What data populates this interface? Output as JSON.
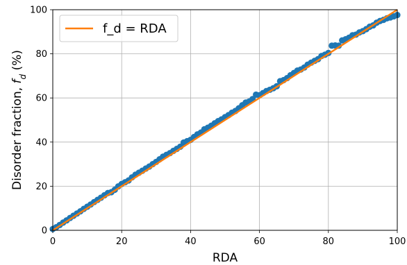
{
  "chart_data": {
    "type": "scatter",
    "xlabel": "RDA",
    "ylabel": "Disorder fraction, ",
    "ylabel_symbol": "f",
    "ylabel_subscript": "d",
    "ylabel_unit": " (%)",
    "xlim": [
      0,
      100
    ],
    "ylim": [
      0,
      100
    ],
    "xticks": [
      0,
      20,
      40,
      60,
      80,
      100
    ],
    "yticks": [
      0,
      20,
      40,
      60,
      80,
      100
    ],
    "grid": true,
    "legend_position": "top-left",
    "series": [
      {
        "kind": "scatter",
        "color": "#1f77b4",
        "x": [
          0,
          1,
          2,
          3,
          4,
          5,
          6,
          7,
          8,
          9,
          10,
          11,
          12,
          13,
          14,
          15,
          16,
          17,
          18,
          19,
          20,
          21,
          22,
          23,
          24,
          25,
          26,
          27,
          28,
          29,
          30,
          31,
          32,
          33,
          34,
          35,
          36,
          37,
          38,
          39,
          40,
          41,
          42,
          43,
          44,
          45,
          46,
          47,
          48,
          49,
          50,
          51,
          52,
          53,
          54,
          55,
          56,
          57,
          58,
          59,
          60,
          61,
          62,
          63,
          64,
          65,
          66,
          67,
          68,
          69,
          70,
          71,
          72,
          73,
          74,
          75,
          76,
          77,
          78,
          79,
          80,
          81,
          82,
          83,
          84,
          85,
          86,
          87,
          88,
          89,
          90,
          91,
          92,
          93,
          94,
          95,
          96,
          97,
          98,
          99,
          100
        ],
        "y": [
          0.6,
          1.4,
          2.4,
          3.5,
          4.5,
          5.6,
          6.6,
          7.6,
          8.6,
          9.7,
          10.7,
          11.7,
          12.8,
          13.8,
          14.8,
          15.9,
          16.9,
          17.3,
          18.4,
          19.9,
          21.0,
          21.8,
          22.6,
          24.0,
          25.2,
          26.1,
          27.0,
          28.0,
          28.9,
          30.0,
          31.0,
          32.2,
          33.4,
          34.2,
          35.0,
          36.0,
          36.9,
          37.9,
          39.8,
          40.4,
          41.0,
          42.3,
          43.5,
          44.3,
          45.8,
          46.5,
          47.4,
          48.5,
          49.5,
          50.3,
          51.3,
          52.2,
          53.3,
          54.1,
          55.3,
          56.7,
          57.9,
          58.4,
          59.5,
          61.5,
          61.2,
          62.2,
          63.1,
          63.7,
          64.4,
          65.3,
          67.6,
          68.1,
          69.0,
          70.3,
          71.3,
          72.4,
          72.9,
          73.8,
          75.1,
          76.0,
          76.8,
          77.6,
          79.0,
          79.6,
          80.4,
          83.7,
          83.8,
          83.7,
          86.1,
          86.6,
          87.3,
          88.4,
          88.7,
          89.7,
          90.3,
          91.2,
          92.3,
          92.9,
          94.1,
          94.9,
          95.4,
          96.1,
          96.5,
          97.0,
          97.6
        ]
      },
      {
        "kind": "line",
        "name": "f_d = RDA",
        "color": "#ff7f0e",
        "x": [
          0,
          100
        ],
        "y": [
          0,
          100
        ]
      }
    ]
  }
}
